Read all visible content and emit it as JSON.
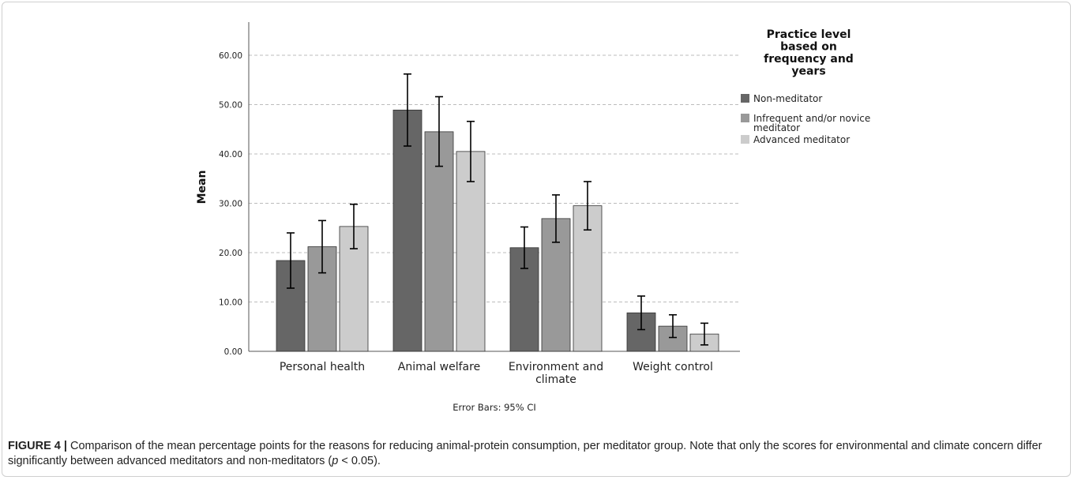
{
  "chart_data": {
    "type": "bar",
    "ylabel": "Mean",
    "xlabel": "",
    "ylim": [
      0,
      66
    ],
    "yticks": [
      0,
      10,
      20,
      30,
      40,
      50,
      60
    ],
    "ytick_labels": [
      "0.00",
      "10.00",
      "20.00",
      "30.00",
      "40.00",
      "50.00",
      "60.00"
    ],
    "grid": "horizontal dashed",
    "categories": [
      {
        "line1": "Personal health",
        "line2": ""
      },
      {
        "line1": "Animal welfare",
        "line2": ""
      },
      {
        "line1": "Environment and",
        "line2": "climate"
      },
      {
        "line1": "Weight control",
        "line2": ""
      }
    ],
    "series": [
      {
        "name": "Non-meditator",
        "color": "#666666",
        "values": [
          18.4,
          48.9,
          21.0,
          7.8
        ],
        "ci_low": [
          12.8,
          41.6,
          16.8,
          4.4
        ],
        "ci_high": [
          24.0,
          56.2,
          25.2,
          11.2
        ]
      },
      {
        "name": "Infrequent and/or novice meditator",
        "color": "#999999",
        "values": [
          21.2,
          44.5,
          26.9,
          5.1
        ],
        "ci_low": [
          15.9,
          37.5,
          22.1,
          2.8
        ],
        "ci_high": [
          26.5,
          51.6,
          31.7,
          7.4
        ]
      },
      {
        "name": "Advanced meditator",
        "color": "#cccccc",
        "values": [
          25.3,
          40.5,
          29.5,
          3.5
        ],
        "ci_low": [
          20.8,
          34.4,
          24.6,
          1.3
        ],
        "ci_high": [
          29.8,
          46.6,
          34.4,
          5.7
        ]
      }
    ],
    "legend": {
      "title_lines": [
        "Practice level",
        "based on",
        "frequency and",
        "years"
      ],
      "entries": [
        {
          "lines": [
            "Non-meditator"
          ]
        },
        {
          "lines": [
            "Infrequent and/or novice",
            "meditator"
          ]
        },
        {
          "lines": [
            "Advanced meditator"
          ]
        }
      ],
      "placement": "right"
    },
    "note": "Error Bars: 95% CI"
  },
  "caption": {
    "label": "FIGURE 4 |",
    "part1": " Comparison of the mean percentage points for the reasons for reducing animal-protein consumption, per meditator group. Note that only the scores for environmental and climate concern differ significantly between advanced meditators and non-meditators (",
    "p": "p",
    "part2": " < 0.05)."
  }
}
